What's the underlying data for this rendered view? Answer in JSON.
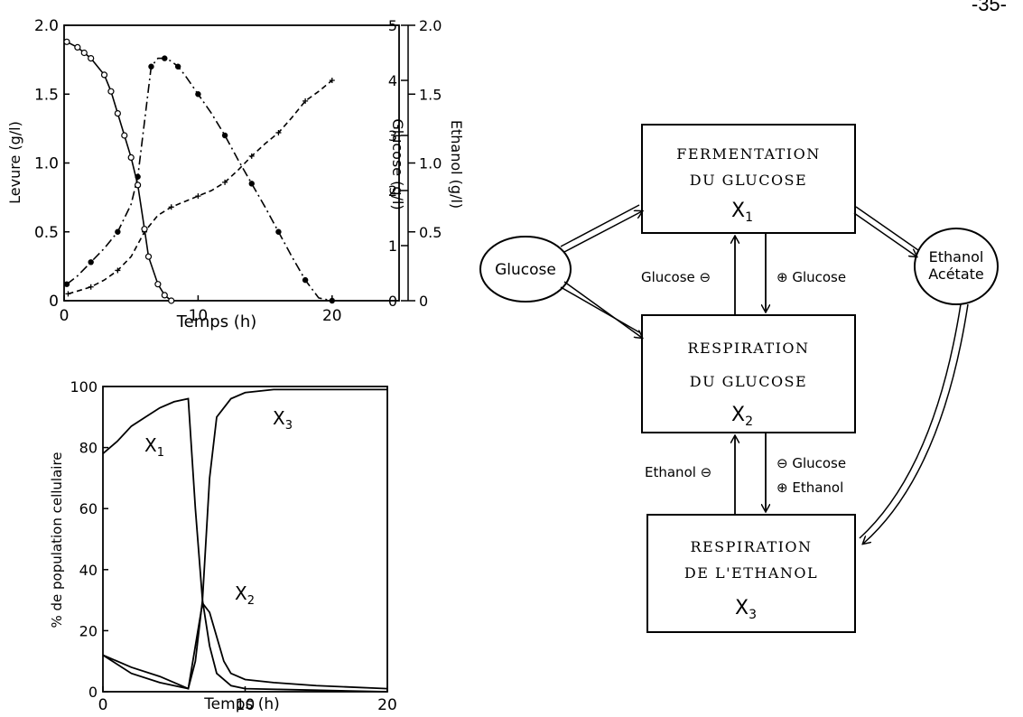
{
  "page_number": "-35-",
  "chart_data": [
    {
      "type": "line",
      "xlabel": "Temps (h)",
      "xlim": [
        0,
        25
      ],
      "x_ticks": [
        0,
        10,
        20
      ],
      "y_axes": [
        {
          "label": "Levure (g/l)",
          "range": [
            0,
            2.0
          ],
          "ticks": [
            "0",
            "0.5",
            "1.0",
            "1.5",
            "2.0"
          ]
        },
        {
          "label": "Glucose (g/l)",
          "range": [
            0,
            5
          ],
          "ticks": [
            "0",
            "1",
            "2",
            "3",
            "4",
            "5"
          ]
        },
        {
          "label": "Ethanol (g/l)",
          "range": [
            0,
            2.0
          ],
          "ticks": [
            "0",
            "0.5",
            "1.0",
            "1.5",
            "2.0"
          ]
        }
      ],
      "series": [
        {
          "name": "Levure",
          "axis": 0,
          "marker": "cross",
          "x": [
            0.3,
            1,
            2,
            3,
            4,
            5,
            6,
            7,
            8,
            9,
            10,
            11,
            12,
            13,
            14,
            15,
            16,
            17,
            18,
            19,
            20
          ],
          "y": [
            0.05,
            0.07,
            0.1,
            0.15,
            0.22,
            0.32,
            0.5,
            0.62,
            0.68,
            0.72,
            0.76,
            0.8,
            0.86,
            0.95,
            1.05,
            1.14,
            1.22,
            1.33,
            1.45,
            1.52,
            1.6
          ]
        },
        {
          "name": "Glucose",
          "axis": 1,
          "marker": "open-circle",
          "x": [
            0.2,
            1,
            1.5,
            2,
            3,
            3.5,
            4,
            4.5,
            5,
            5.5,
            6,
            6.3,
            7,
            7.5,
            8
          ],
          "y": [
            4.7,
            4.6,
            4.5,
            4.4,
            4.1,
            3.8,
            3.4,
            3.0,
            2.6,
            2.1,
            1.3,
            0.8,
            0.3,
            0.1,
            0.0
          ]
        },
        {
          "name": "Ethanol",
          "axis": 2,
          "marker": "filled-circle",
          "x": [
            0.2,
            1,
            2,
            3,
            4,
            5,
            5.5,
            6,
            6.5,
            7,
            7.5,
            8,
            8.5,
            9,
            10,
            11,
            12,
            13,
            14,
            15,
            16,
            17,
            18,
            19,
            20
          ],
          "y": [
            0.12,
            0.18,
            0.28,
            0.38,
            0.5,
            0.7,
            0.9,
            1.3,
            1.7,
            1.76,
            1.76,
            1.74,
            1.7,
            1.64,
            1.5,
            1.36,
            1.2,
            1.02,
            0.85,
            0.68,
            0.5,
            0.32,
            0.15,
            0.02,
            0.0
          ]
        }
      ]
    },
    {
      "type": "line",
      "xlabel": "Temps (h)",
      "ylabel": "% de population cellulaire",
      "xlim": [
        0,
        20
      ],
      "ylim": [
        0,
        100
      ],
      "x_ticks": [
        "0",
        "10",
        "20"
      ],
      "y_ticks": [
        "0",
        "20",
        "40",
        "60",
        "80",
        "100"
      ],
      "series": [
        {
          "name": "X1",
          "x": [
            0,
            1,
            2,
            3,
            4,
            5,
            6,
            6.5,
            7,
            7.5,
            8,
            9,
            10,
            15,
            20
          ],
          "y": [
            78,
            82,
            87,
            90,
            93,
            95,
            96,
            60,
            30,
            15,
            6,
            2,
            1,
            0.5,
            0
          ]
        },
        {
          "name": "X2",
          "x": [
            0,
            2,
            4,
            5,
            6,
            6.5,
            7,
            7.5,
            8,
            8.5,
            9,
            10,
            12,
            15,
            20
          ],
          "y": [
            12,
            8,
            5,
            3,
            1,
            15,
            29,
            26,
            18,
            10,
            6,
            4,
            3,
            2,
            1
          ]
        },
        {
          "name": "X3",
          "x": [
            0,
            2,
            4,
            6,
            6.5,
            7,
            7.5,
            8,
            9,
            10,
            12,
            15,
            20
          ],
          "y": [
            12,
            6,
            3,
            1,
            10,
            30,
            70,
            90,
            96,
            98,
            99,
            99,
            99
          ]
        }
      ]
    }
  ],
  "diagram": {
    "nodes": {
      "glucose": "Glucose",
      "ethanol_line1": "Ethanol",
      "ethanol_line2": "Acétate"
    },
    "boxes": [
      {
        "line1": "FERMENTATION",
        "line2": "DU GLUCOSE",
        "symbol": "X",
        "sub": "1"
      },
      {
        "line1": "RESPIRATION",
        "line2": "DU GLUCOSE",
        "symbol": "X",
        "sub": "2"
      },
      {
        "line1": "RESPIRATION",
        "line2": "DE L'ETHANOL",
        "symbol": "X",
        "sub": "3"
      }
    ],
    "labels": {
      "glucose_minus": "Glucose ⊖",
      "glucose_plus": "⊕ Glucose",
      "ethanol_minus": "Ethanol ⊖",
      "glucose_minus2": "⊖ Glucose",
      "ethanol_plus": "⊕ Ethanol"
    }
  }
}
